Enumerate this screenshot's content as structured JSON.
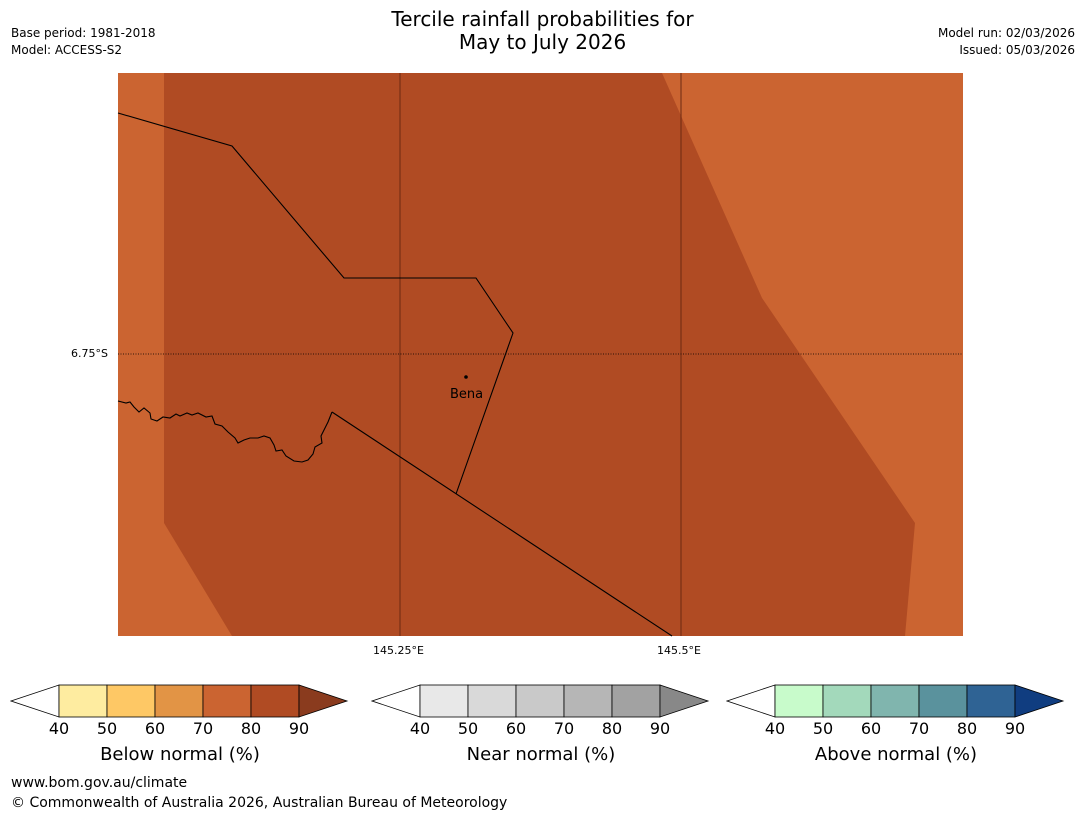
{
  "title": {
    "line1": "Tercile rainfall probabilities for",
    "line2": "May to July 2026"
  },
  "meta_left": {
    "base_period": "Base period: 1981-2018",
    "model": "Model: ACCESS-S2"
  },
  "meta_right": {
    "model_run": "Model run: 02/03/2026",
    "issued": "Issued: 05/03/2026"
  },
  "map": {
    "lat_label": "6.75°S",
    "lon_labels": [
      "145.25°E",
      "145.5°E"
    ],
    "place": "Bena",
    "colors": {
      "category_70_80": "#cb6431",
      "category_80_90": "#b04b23",
      "border": "#000000"
    }
  },
  "colorbars": [
    {
      "label": "Below normal (%)",
      "ticks": [
        "40",
        "50",
        "60",
        "70",
        "80",
        "90"
      ],
      "colors": [
        "#ffffff",
        "#feeca0",
        "#fec865",
        "#e29445",
        "#cb6431",
        "#b04b23",
        "#8a3b1e"
      ]
    },
    {
      "label": "Near normal (%)",
      "ticks": [
        "40",
        "50",
        "60",
        "70",
        "80",
        "90"
      ],
      "colors": [
        "#ffffff",
        "#e8e8e8",
        "#d9d9d9",
        "#c9c9c9",
        "#b6b6b6",
        "#a2a2a2",
        "#888888"
      ]
    },
    {
      "label": "Above normal (%)",
      "ticks": [
        "40",
        "50",
        "60",
        "70",
        "80",
        "90"
      ],
      "colors": [
        "#ffffff",
        "#c8fbcb",
        "#a3d9bb",
        "#80b5ae",
        "#5a929d",
        "#2f6394",
        "#103d80"
      ]
    }
  ],
  "footer": {
    "url": "www.bom.gov.au/climate",
    "copyright": "© Commonwealth of Australia 2026, Australian Bureau of Meteorology"
  }
}
